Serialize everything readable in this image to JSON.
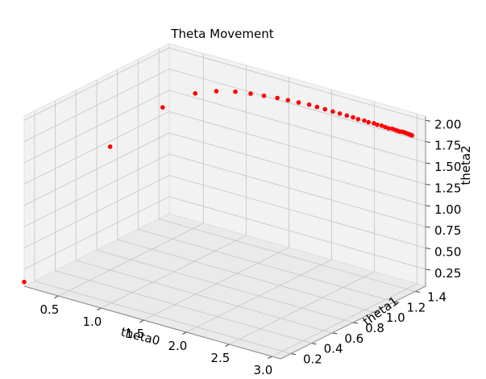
{
  "chart_data": {
    "type": "scatter",
    "title": "Theta Movement",
    "xlabel": "theta0",
    "ylabel": "theta1",
    "zlabel": "theta2",
    "xlim": [
      0.1,
      3.1
    ],
    "ylim": [
      0.1,
      1.5
    ],
    "zlim": [
      0.05,
      2.05
    ],
    "x_ticks": [
      "0.5",
      "1.0",
      "1.5",
      "2.0",
      "2.5",
      "3.0"
    ],
    "y_ticks": [
      "0.2",
      "0.4",
      "0.6",
      "0.8",
      "1.0",
      "1.2",
      "1.4"
    ],
    "z_ticks": [
      "0.25",
      "0.50",
      "0.75",
      "1.00",
      "1.25",
      "1.50",
      "1.75",
      "2.00"
    ],
    "grid": true,
    "marker_color": "#ff0000",
    "pane_color": "#f2f2f2",
    "points": [
      {
        "x": 0.1,
        "y": 0.1,
        "z": 0.1
      },
      {
        "x": 0.5,
        "y": 0.6,
        "z": 1.5
      },
      {
        "x": 0.75,
        "y": 0.9,
        "z": 1.85
      },
      {
        "x": 0.95,
        "y": 1.05,
        "z": 1.98
      },
      {
        "x": 1.1,
        "y": 1.13,
        "z": 2.0
      },
      {
        "x": 1.25,
        "y": 1.19,
        "z": 2.0
      },
      {
        "x": 1.38,
        "y": 1.23,
        "z": 1.99
      },
      {
        "x": 1.5,
        "y": 1.26,
        "z": 1.98
      },
      {
        "x": 1.62,
        "y": 1.29,
        "z": 1.97
      },
      {
        "x": 1.72,
        "y": 1.31,
        "z": 1.96
      },
      {
        "x": 1.82,
        "y": 1.33,
        "z": 1.95
      },
      {
        "x": 1.92,
        "y": 1.35,
        "z": 1.94
      },
      {
        "x": 2.0,
        "y": 1.36,
        "z": 1.93
      },
      {
        "x": 2.08,
        "y": 1.37,
        "z": 1.92
      },
      {
        "x": 2.16,
        "y": 1.38,
        "z": 1.91
      },
      {
        "x": 2.23,
        "y": 1.39,
        "z": 1.9
      },
      {
        "x": 2.3,
        "y": 1.4,
        "z": 1.89
      },
      {
        "x": 2.36,
        "y": 1.41,
        "z": 1.88
      },
      {
        "x": 2.42,
        "y": 1.41,
        "z": 1.875
      },
      {
        "x": 2.48,
        "y": 1.42,
        "z": 1.87
      },
      {
        "x": 2.53,
        "y": 1.42,
        "z": 1.865
      },
      {
        "x": 2.58,
        "y": 1.43,
        "z": 1.86
      },
      {
        "x": 2.62,
        "y": 1.43,
        "z": 1.855
      },
      {
        "x": 2.66,
        "y": 1.44,
        "z": 1.85
      },
      {
        "x": 2.7,
        "y": 1.44,
        "z": 1.845
      },
      {
        "x": 2.74,
        "y": 1.44,
        "z": 1.84
      },
      {
        "x": 2.77,
        "y": 1.45,
        "z": 1.838
      },
      {
        "x": 2.8,
        "y": 1.45,
        "z": 1.835
      },
      {
        "x": 2.83,
        "y": 1.45,
        "z": 1.832
      },
      {
        "x": 2.86,
        "y": 1.45,
        "z": 1.83
      },
      {
        "x": 2.88,
        "y": 1.46,
        "z": 1.828
      },
      {
        "x": 2.9,
        "y": 1.46,
        "z": 1.826
      },
      {
        "x": 2.92,
        "y": 1.46,
        "z": 1.824
      },
      {
        "x": 2.94,
        "y": 1.46,
        "z": 1.822
      },
      {
        "x": 2.96,
        "y": 1.46,
        "z": 1.82
      },
      {
        "x": 2.97,
        "y": 1.46,
        "z": 1.819
      },
      {
        "x": 2.98,
        "y": 1.46,
        "z": 1.818
      },
      {
        "x": 2.99,
        "y": 1.46,
        "z": 1.817
      }
    ]
  }
}
